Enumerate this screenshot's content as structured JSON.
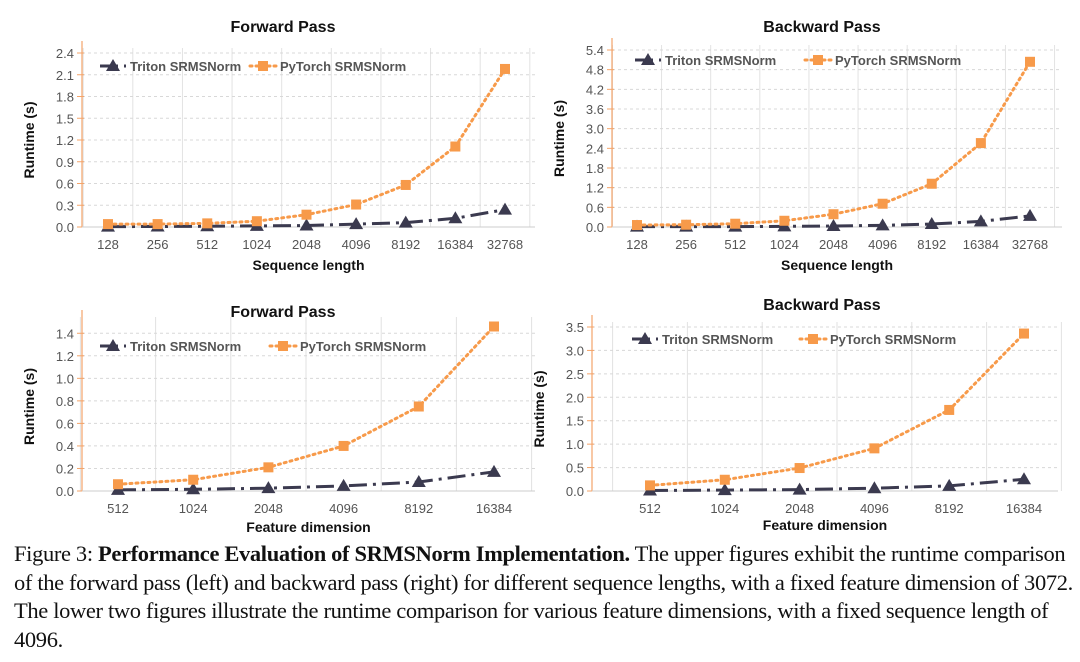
{
  "chart_data": [
    {
      "type": "line",
      "title": "Forward Pass",
      "xlabel": "Sequence length",
      "ylabel": "Runtime (s)",
      "categories": [
        "128",
        "256",
        "512",
        "1024",
        "2048",
        "4096",
        "8192",
        "16384",
        "32768"
      ],
      "ylim": [
        0,
        2.4
      ],
      "yticks": [
        "0.0",
        "0.3",
        "0.6",
        "0.9",
        "1.2",
        "1.5",
        "1.8",
        "2.1",
        "2.4"
      ],
      "grid": true,
      "legend": "top-left",
      "series": [
        {
          "name": "Triton SRMSNorm",
          "color": "#3b3a4f",
          "marker": "triangle",
          "line": "dash-dot",
          "values": [
            0.005,
            0.007,
            0.01,
            0.015,
            0.02,
            0.04,
            0.06,
            0.12,
            0.24
          ]
        },
        {
          "name": "PyTorch SRMSNorm",
          "color": "#f79a4a",
          "marker": "square",
          "line": "dotted",
          "values": [
            0.04,
            0.04,
            0.05,
            0.08,
            0.17,
            0.31,
            0.58,
            1.11,
            2.18
          ]
        }
      ]
    },
    {
      "type": "line",
      "title": "Backward Pass",
      "xlabel": "Sequence length",
      "ylabel": "Runtime (s)",
      "categories": [
        "128",
        "256",
        "512",
        "1024",
        "2048",
        "4096",
        "8192",
        "16384",
        "32768"
      ],
      "ylim": [
        0,
        5.4
      ],
      "yticks": [
        "0.0",
        "0.6",
        "1.2",
        "1.8",
        "2.4",
        "3.0",
        "3.6",
        "4.2",
        "4.8",
        "5.4"
      ],
      "grid": true,
      "legend": "top-left",
      "series": [
        {
          "name": "Triton SRMSNorm",
          "color": "#3b3a4f",
          "marker": "triangle",
          "line": "dash-dot",
          "values": [
            0.01,
            0.01,
            0.01,
            0.02,
            0.03,
            0.05,
            0.09,
            0.17,
            0.34
          ]
        },
        {
          "name": "PyTorch SRMSNorm",
          "color": "#f79a4a",
          "marker": "square",
          "line": "dotted",
          "values": [
            0.06,
            0.07,
            0.1,
            0.19,
            0.39,
            0.71,
            1.32,
            2.56,
            5.04
          ]
        }
      ]
    },
    {
      "type": "line",
      "title": "Forward Pass",
      "xlabel": "Feature dimension",
      "ylabel": "Runtime (s)",
      "categories": [
        "512",
        "1024",
        "2048",
        "4096",
        "8192",
        "16384"
      ],
      "ylim": [
        0,
        1.5
      ],
      "yticks": [
        "0.0",
        "0.2",
        "0.4",
        "0.6",
        "0.8",
        "1.0",
        "1.2",
        "1.4"
      ],
      "grid": true,
      "legend": "top-left",
      "series": [
        {
          "name": "Triton SRMSNorm",
          "color": "#3b3a4f",
          "marker": "triangle",
          "line": "dash-dot",
          "values": [
            0.01,
            0.015,
            0.025,
            0.045,
            0.08,
            0.17
          ]
        },
        {
          "name": "PyTorch SRMSNorm",
          "color": "#f79a4a",
          "marker": "square",
          "line": "dotted",
          "values": [
            0.06,
            0.1,
            0.21,
            0.4,
            0.75,
            1.46
          ]
        }
      ]
    },
    {
      "type": "line",
      "title": "Backward Pass",
      "xlabel": "Feature dimension",
      "ylabel": "Runtime (s)",
      "categories": [
        "512",
        "1024",
        "2048",
        "4096",
        "8192",
        "16384"
      ],
      "ylim": [
        0,
        3.5
      ],
      "yticks": [
        "0.0",
        "0.5",
        "1.0",
        "1.5",
        "2.0",
        "2.5",
        "3.0",
        "3.5"
      ],
      "grid": true,
      "legend": "top-left",
      "series": [
        {
          "name": "Triton SRMSNorm",
          "color": "#3b3a4f",
          "marker": "triangle",
          "line": "dash-dot",
          "values": [
            0.01,
            0.02,
            0.03,
            0.06,
            0.11,
            0.25
          ]
        },
        {
          "name": "PyTorch SRMSNorm",
          "color": "#f79a4a",
          "marker": "square",
          "line": "dotted",
          "values": [
            0.12,
            0.24,
            0.49,
            0.91,
            1.73,
            3.36
          ]
        }
      ]
    }
  ],
  "caption": {
    "label": "Figure 3: ",
    "bold": "Performance Evaluation of SRMSNorm Implementation.",
    "text": " The upper figures exhibit the runtime comparison of the forward pass (left) and backward pass (right) for different sequence lengths, with a fixed feature dimension of 3072. The lower two figures illustrate the runtime comparison for various feature dimensions, with a fixed sequence length of 4096."
  }
}
